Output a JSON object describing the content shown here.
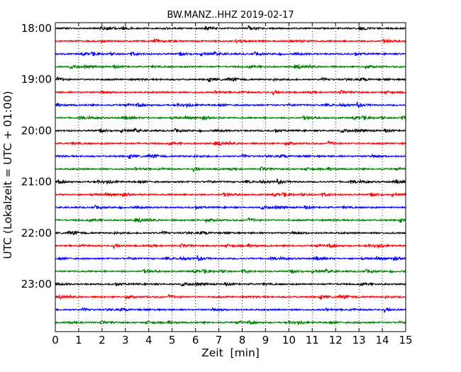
{
  "chart_data": {
    "type": "line",
    "title": "BW.MANZ..HHZ 2019-02-17",
    "xlabel": "Zeit  [min]",
    "ylabel": "UTC (Lokalzeit = UTC + 01:00)",
    "xlim": [
      0,
      15
    ],
    "x_ticks": [
      "0",
      "1",
      "2",
      "3",
      "4",
      "5",
      "6",
      "7",
      "8",
      "9",
      "10",
      "11",
      "12",
      "13",
      "14",
      "15"
    ],
    "y_ticks": [
      "18:00",
      "19:00",
      "20:00",
      "21:00",
      "22:00",
      "23:00"
    ],
    "grid": "vertical dotted",
    "trace_interval_min": 15,
    "trace_colors": [
      "#000000",
      "#ff0000",
      "#0000ff",
      "#008000"
    ],
    "traces": [
      {
        "start": "18:00"
      },
      {
        "start": "18:15"
      },
      {
        "start": "18:30"
      },
      {
        "start": "18:45"
      },
      {
        "start": "19:00"
      },
      {
        "start": "19:15"
      },
      {
        "start": "19:30"
      },
      {
        "start": "19:45"
      },
      {
        "start": "20:00"
      },
      {
        "start": "20:15"
      },
      {
        "start": "20:30"
      },
      {
        "start": "20:45"
      },
      {
        "start": "21:00"
      },
      {
        "start": "21:15"
      },
      {
        "start": "21:30"
      },
      {
        "start": "21:45"
      },
      {
        "start": "22:00"
      },
      {
        "start": "22:15"
      },
      {
        "start": "22:30"
      },
      {
        "start": "22:45"
      },
      {
        "start": "23:00"
      },
      {
        "start": "23:15"
      },
      {
        "start": "23:30"
      },
      {
        "start": "23:45"
      }
    ]
  }
}
